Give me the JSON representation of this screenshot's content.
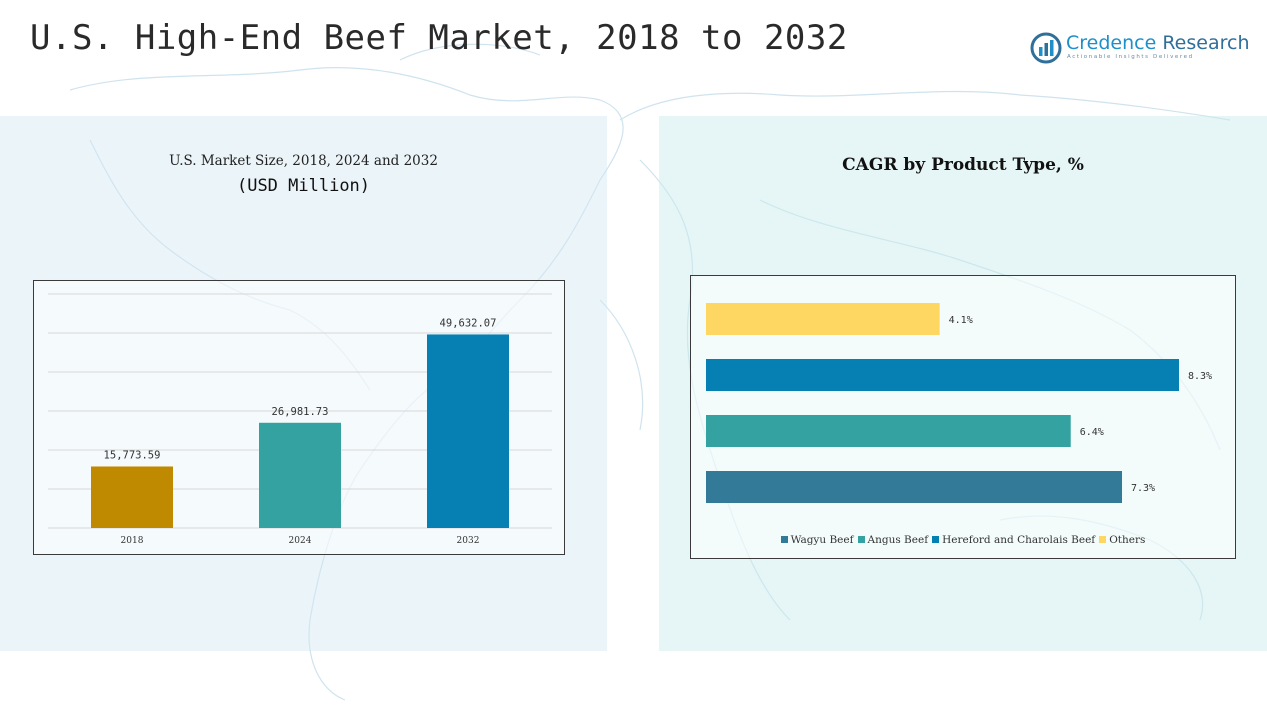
{
  "header": {
    "title": "U.S. High-End Beef Market, 2018 to 2032",
    "logo": {
      "brand_part1": "Credence",
      "brand_part2": "Research",
      "tagline": "Actionable Insights Delivered",
      "icon": "bar-chart-circle-icon"
    }
  },
  "left_panel": {
    "title_line1": "U.S. Market Size, 2018, 2024 and 2032",
    "title_line2": "(USD Million)"
  },
  "right_panel": {
    "title": "CAGR by Product Type, %"
  },
  "chart_data": [
    {
      "type": "bar",
      "title": "U.S. Market Size, 2018, 2024 and 2032",
      "ylabel": "",
      "categories": [
        "2018",
        "2024",
        "2032"
      ],
      "values": [
        15773.59,
        26981.73,
        49632.07
      ],
      "value_labels": [
        "15,773.59",
        "26,981.73",
        "49,632.07"
      ],
      "colors": [
        "#c08a00",
        "#33a2a0",
        "#0680b2"
      ],
      "ylim": [
        0,
        60000
      ],
      "grid": true
    },
    {
      "type": "bar",
      "orientation": "horizontal",
      "title": "CAGR by Product Type, %",
      "categories": [
        "Others",
        "Hereford and Charolais Beef",
        "Angus Beef",
        "Wagyu Beef"
      ],
      "values": [
        4.1,
        8.3,
        6.4,
        7.3
      ],
      "value_labels": [
        "4.1%",
        "8.3%",
        "6.4%",
        "7.3%"
      ],
      "colors": [
        "#fdd762",
        "#0680b2",
        "#33a2a0",
        "#337a98"
      ],
      "xlim": [
        0,
        8.3
      ],
      "legend": {
        "placement": "bottom",
        "entries": [
          "Wagyu Beef",
          "Angus Beef",
          "Hereford and Charolais Beef",
          "Others"
        ],
        "colors": [
          "#337a98",
          "#33a2a0",
          "#0680b2",
          "#fdd762"
        ]
      }
    }
  ]
}
